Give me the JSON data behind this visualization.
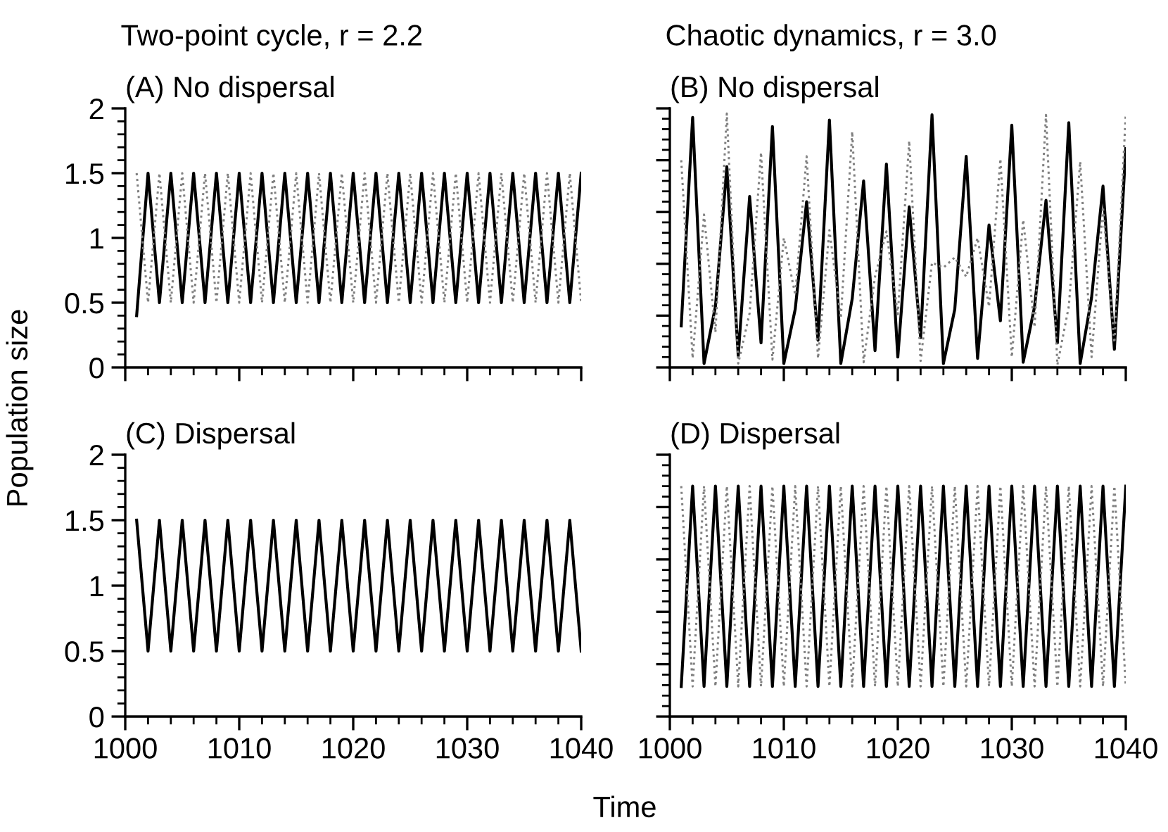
{
  "chart_data": [
    {
      "type": "line",
      "subtitle": "Two-point cycle, r = 2.2",
      "title": "(A) No dispersal",
      "ylabel": "Population size",
      "tick_labels": "y",
      "grid": false,
      "legend": false,
      "marker": "none",
      "x": [
        1001,
        1002,
        1003,
        1004,
        1005,
        1006,
        1007,
        1008,
        1009,
        1010,
        1011,
        1012,
        1013,
        1014,
        1015,
        1016,
        1017,
        1018,
        1019,
        1020,
        1021,
        1022,
        1023,
        1024,
        1025,
        1026,
        1027,
        1028,
        1029,
        1030,
        1031,
        1032,
        1033,
        1034,
        1035,
        1036,
        1037,
        1038,
        1039,
        1040
      ],
      "xlim": [
        1000,
        1040
      ],
      "xticks": [
        1000,
        {
          "value": 1002,
          "label": null
        },
        {
          "value": 1004,
          "label": null
        },
        {
          "value": 1006,
          "label": null
        },
        {
          "value": 1008,
          "label": null
        },
        1010,
        {
          "value": 1012,
          "label": null
        },
        {
          "value": 1014,
          "label": null
        },
        {
          "value": 1016,
          "label": null
        },
        {
          "value": 1018,
          "label": null
        },
        1020,
        {
          "value": 1022,
          "label": null
        },
        {
          "value": 1024,
          "label": null
        },
        {
          "value": 1026,
          "label": null
        },
        {
          "value": 1028,
          "label": null
        },
        1030,
        {
          "value": 1032,
          "label": null
        },
        {
          "value": 1034,
          "label": null
        },
        {
          "value": 1036,
          "label": null
        },
        {
          "value": 1038,
          "label": null
        },
        1040
      ],
      "ylim": [
        0,
        2
      ],
      "yticks": [
        0,
        {
          "value": 0.1,
          "label": null
        },
        {
          "value": 0.2,
          "label": null
        },
        {
          "value": 0.3,
          "label": null
        },
        {
          "value": 0.4,
          "label": null
        },
        0.5,
        {
          "value": 0.6,
          "label": null
        },
        {
          "value": 0.7,
          "label": null
        },
        {
          "value": 0.8,
          "label": null
        },
        {
          "value": 0.9,
          "label": null
        },
        1,
        {
          "value": 1.1,
          "label": null
        },
        {
          "value": 1.2,
          "label": null
        },
        {
          "value": 1.3,
          "label": null
        },
        {
          "value": 1.4,
          "label": null
        },
        1.5,
        {
          "value": 1.6,
          "label": null
        },
        {
          "value": 1.7,
          "label": null
        },
        {
          "value": 1.8,
          "label": null
        },
        {
          "value": 1.9,
          "label": null
        },
        2
      ],
      "series": [
        {
          "color": "#000000",
          "line_style": "solid",
          "values": [
            0.4,
            1.5,
            0.5,
            1.5,
            0.5,
            1.5,
            0.5,
            1.5,
            0.5,
            1.5,
            0.5,
            1.5,
            0.5,
            1.5,
            0.5,
            1.5,
            0.5,
            1.5,
            0.5,
            1.5,
            0.5,
            1.5,
            0.5,
            1.5,
            0.5,
            1.5,
            0.5,
            1.5,
            0.5,
            1.5,
            0.5,
            1.5,
            0.5,
            1.5,
            0.5,
            1.5,
            0.5,
            1.5,
            0.5,
            1.5
          ]
        },
        {
          "color": "#808080",
          "line_style": "dotted",
          "values": [
            1.5,
            0.5,
            1.5,
            0.5,
            1.5,
            0.5,
            1.5,
            0.5,
            1.5,
            0.5,
            1.5,
            0.5,
            1.5,
            0.5,
            1.5,
            0.5,
            1.5,
            0.5,
            1.5,
            0.5,
            1.5,
            0.5,
            1.5,
            0.5,
            1.5,
            0.5,
            1.5,
            0.5,
            1.5,
            0.5,
            1.5,
            0.5,
            1.5,
            0.5,
            1.5,
            0.5,
            1.5,
            0.5,
            1.5,
            0.5
          ]
        }
      ]
    },
    {
      "type": "line",
      "subtitle": "Chaotic dynamics, r = 3.0",
      "title": "(B) No dispersal",
      "tick_labels": false,
      "grid": false,
      "legend": false,
      "marker": "none",
      "x": [
        1001,
        1002,
        1003,
        1004,
        1005,
        1006,
        1007,
        1008,
        1009,
        1010,
        1011,
        1012,
        1013,
        1014,
        1015,
        1016,
        1017,
        1018,
        1019,
        1020,
        1021,
        1022,
        1023,
        1024,
        1025,
        1026,
        1027,
        1028,
        1029,
        1030,
        1031,
        1032,
        1033,
        1034,
        1035,
        1036,
        1037,
        1038,
        1039,
        1040
      ],
      "xlim": [
        1000,
        1040
      ],
      "xticks": [
        1000,
        {
          "value": 1002,
          "label": null
        },
        {
          "value": 1004,
          "label": null
        },
        {
          "value": 1006,
          "label": null
        },
        {
          "value": 1008,
          "label": null
        },
        1010,
        {
          "value": 1012,
          "label": null
        },
        {
          "value": 1014,
          "label": null
        },
        {
          "value": 1016,
          "label": null
        },
        {
          "value": 1018,
          "label": null
        },
        1020,
        {
          "value": 1022,
          "label": null
        },
        {
          "value": 1024,
          "label": null
        },
        {
          "value": 1026,
          "label": null
        },
        {
          "value": 1028,
          "label": null
        },
        1030,
        {
          "value": 1032,
          "label": null
        },
        {
          "value": 1034,
          "label": null
        },
        {
          "value": 1036,
          "label": null
        },
        {
          "value": 1038,
          "label": null
        },
        1040
      ],
      "ylim": [
        0,
        2
      ],
      "yticks": [
        0,
        {
          "value": 0.08,
          "label": null
        },
        {
          "value": 0.16,
          "label": null
        },
        {
          "value": 0.24,
          "label": null
        },
        {
          "value": 0.32,
          "label": null
        },
        0.4,
        {
          "value": 0.48,
          "label": null
        },
        {
          "value": 0.56,
          "label": null
        },
        {
          "value": 0.64,
          "label": null
        },
        {
          "value": 0.72,
          "label": null
        },
        0.8,
        {
          "value": 0.88,
          "label": null
        },
        {
          "value": 0.96,
          "label": null
        },
        {
          "value": 1.04,
          "label": null
        },
        {
          "value": 1.12,
          "label": null
        },
        1.2,
        {
          "value": 1.28,
          "label": null
        },
        {
          "value": 1.36,
          "label": null
        },
        {
          "value": 1.44,
          "label": null
        },
        {
          "value": 1.52,
          "label": null
        },
        1.6,
        {
          "value": 1.68,
          "label": null
        },
        {
          "value": 1.76,
          "label": null
        },
        {
          "value": 1.84,
          "label": null
        },
        {
          "value": 1.92,
          "label": null
        },
        2
      ],
      "series": [
        {
          "color": "#000000",
          "line_style": "solid",
          "values": [
            0.32,
            1.93,
            0.03,
            0.47,
            1.55,
            0.09,
            1.32,
            0.19,
            1.86,
            0.03,
            0.45,
            1.28,
            0.21,
            1.91,
            0.03,
            0.53,
            1.44,
            0.13,
            1.57,
            0.08,
            1.24,
            0.23,
            1.95,
            0.03,
            0.45,
            1.63,
            0.07,
            1.1,
            0.36,
            1.87,
            0.04,
            0.47,
            1.29,
            0.19,
            1.89,
            0.03,
            0.54,
            1.4,
            0.14,
            1.69
          ]
        },
        {
          "color": "#808080",
          "line_style": "dotted",
          "values": [
            1.6,
            0.07,
            1.18,
            0.27,
            1.96,
            0.03,
            0.42,
            1.66,
            0.06,
            1.0,
            0.56,
            1.63,
            0.07,
            1.06,
            0.38,
            1.82,
            0.04,
            0.7,
            1.05,
            0.41,
            1.75,
            0.05,
            0.81,
            0.77,
            0.85,
            0.7,
            1.0,
            0.47,
            1.61,
            0.08,
            1.14,
            0.31,
            1.95,
            0.02,
            0.47,
            1.59,
            0.08,
            1.24,
            0.19,
            1.96
          ]
        }
      ]
    },
    {
      "type": "line",
      "title": "(C) Dispersal",
      "xlabel": "Time",
      "grid": false,
      "legend": false,
      "marker": "none",
      "x": [
        1001,
        1002,
        1003,
        1004,
        1005,
        1006,
        1007,
        1008,
        1009,
        1010,
        1011,
        1012,
        1013,
        1014,
        1015,
        1016,
        1017,
        1018,
        1019,
        1020,
        1021,
        1022,
        1023,
        1024,
        1025,
        1026,
        1027,
        1028,
        1029,
        1030,
        1031,
        1032,
        1033,
        1034,
        1035,
        1036,
        1037,
        1038,
        1039,
        1040
      ],
      "xlim": [
        1000,
        1040
      ],
      "xticks": [
        1000,
        {
          "value": 1002,
          "label": null
        },
        {
          "value": 1004,
          "label": null
        },
        {
          "value": 1006,
          "label": null
        },
        {
          "value": 1008,
          "label": null
        },
        1010,
        {
          "value": 1012,
          "label": null
        },
        {
          "value": 1014,
          "label": null
        },
        {
          "value": 1016,
          "label": null
        },
        {
          "value": 1018,
          "label": null
        },
        1020,
        {
          "value": 1022,
          "label": null
        },
        {
          "value": 1024,
          "label": null
        },
        {
          "value": 1026,
          "label": null
        },
        {
          "value": 1028,
          "label": null
        },
        1030,
        {
          "value": 1032,
          "label": null
        },
        {
          "value": 1034,
          "label": null
        },
        {
          "value": 1036,
          "label": null
        },
        {
          "value": 1038,
          "label": null
        },
        1040
      ],
      "ylim": [
        0,
        2
      ],
      "yticks": [
        0,
        {
          "value": 0.1,
          "label": null
        },
        {
          "value": 0.2,
          "label": null
        },
        {
          "value": 0.3,
          "label": null
        },
        {
          "value": 0.4,
          "label": null
        },
        0.5,
        {
          "value": 0.6,
          "label": null
        },
        {
          "value": 0.7,
          "label": null
        },
        {
          "value": 0.8,
          "label": null
        },
        {
          "value": 0.9,
          "label": null
        },
        1,
        {
          "value": 1.1,
          "label": null
        },
        {
          "value": 1.2,
          "label": null
        },
        {
          "value": 1.3,
          "label": null
        },
        {
          "value": 1.4,
          "label": null
        },
        1.5,
        {
          "value": 1.6,
          "label": null
        },
        {
          "value": 1.7,
          "label": null
        },
        {
          "value": 1.8,
          "label": null
        },
        {
          "value": 1.9,
          "label": null
        },
        2
      ],
      "series": [
        {
          "color": "#000000",
          "line_style": "solid",
          "values": [
            1.5,
            0.5,
            1.5,
            0.5,
            1.5,
            0.5,
            1.5,
            0.5,
            1.5,
            0.5,
            1.5,
            0.5,
            1.5,
            0.5,
            1.5,
            0.5,
            1.5,
            0.5,
            1.5,
            0.5,
            1.5,
            0.5,
            1.5,
            0.5,
            1.5,
            0.5,
            1.5,
            0.5,
            1.5,
            0.5,
            1.5,
            0.5,
            1.5,
            0.5,
            1.5,
            0.5,
            1.5,
            0.5,
            1.5,
            0.5
          ]
        }
      ]
    },
    {
      "type": "line",
      "title": "(D) Dispersal",
      "tick_labels": "x",
      "grid": false,
      "legend": false,
      "marker": "none",
      "x": [
        1001,
        1002,
        1003,
        1004,
        1005,
        1006,
        1007,
        1008,
        1009,
        1010,
        1011,
        1012,
        1013,
        1014,
        1015,
        1016,
        1017,
        1018,
        1019,
        1020,
        1021,
        1022,
        1023,
        1024,
        1025,
        1026,
        1027,
        1028,
        1029,
        1030,
        1031,
        1032,
        1033,
        1034,
        1035,
        1036,
        1037,
        1038,
        1039,
        1040
      ],
      "xlim": [
        1000,
        1040
      ],
      "xticks": [
        1000,
        {
          "value": 1002,
          "label": null
        },
        {
          "value": 1004,
          "label": null
        },
        {
          "value": 1006,
          "label": null
        },
        {
          "value": 1008,
          "label": null
        },
        1010,
        {
          "value": 1012,
          "label": null
        },
        {
          "value": 1014,
          "label": null
        },
        {
          "value": 1016,
          "label": null
        },
        {
          "value": 1018,
          "label": null
        },
        1020,
        {
          "value": 1022,
          "label": null
        },
        {
          "value": 1024,
          "label": null
        },
        {
          "value": 1026,
          "label": null
        },
        {
          "value": 1028,
          "label": null
        },
        1030,
        {
          "value": 1032,
          "label": null
        },
        {
          "value": 1034,
          "label": null
        },
        {
          "value": 1036,
          "label": null
        },
        {
          "value": 1038,
          "label": null
        },
        1040
      ],
      "ylim": [
        0,
        2
      ],
      "yticks": [
        0,
        {
          "value": 0.08,
          "label": null
        },
        {
          "value": 0.16,
          "label": null
        },
        {
          "value": 0.24,
          "label": null
        },
        {
          "value": 0.32,
          "label": null
        },
        0.4,
        {
          "value": 0.48,
          "label": null
        },
        {
          "value": 0.56,
          "label": null
        },
        {
          "value": 0.64,
          "label": null
        },
        {
          "value": 0.72,
          "label": null
        },
        0.8,
        {
          "value": 0.88,
          "label": null
        },
        {
          "value": 0.96,
          "label": null
        },
        {
          "value": 1.04,
          "label": null
        },
        {
          "value": 1.12,
          "label": null
        },
        1.2,
        {
          "value": 1.28,
          "label": null
        },
        {
          "value": 1.36,
          "label": null
        },
        {
          "value": 1.44,
          "label": null
        },
        {
          "value": 1.52,
          "label": null
        },
        1.6,
        {
          "value": 1.68,
          "label": null
        },
        {
          "value": 1.76,
          "label": null
        },
        {
          "value": 1.84,
          "label": null
        },
        {
          "value": 1.92,
          "label": null
        },
        2
      ],
      "series": [
        {
          "color": "#000000",
          "line_style": "solid",
          "values": [
            0.23,
            1.76,
            0.23,
            1.76,
            0.23,
            1.76,
            0.23,
            1.76,
            0.23,
            1.76,
            0.23,
            1.76,
            0.23,
            1.76,
            0.23,
            1.76,
            0.23,
            1.76,
            0.23,
            1.76,
            0.23,
            1.76,
            0.23,
            1.76,
            0.23,
            1.76,
            0.23,
            1.76,
            0.23,
            1.76,
            0.23,
            1.76,
            0.23,
            1.76,
            0.23,
            1.76,
            0.23,
            1.76,
            0.23,
            1.76
          ]
        },
        {
          "color": "#808080",
          "line_style": "dotted",
          "values": [
            1.76,
            0.23,
            1.76,
            0.23,
            1.76,
            0.23,
            1.76,
            0.23,
            1.76,
            0.23,
            1.76,
            0.23,
            1.76,
            0.23,
            1.76,
            0.23,
            1.76,
            0.23,
            1.76,
            0.23,
            1.76,
            0.23,
            1.76,
            0.23,
            1.76,
            0.23,
            1.76,
            0.23,
            1.76,
            0.23,
            1.76,
            0.23,
            1.76,
            0.23,
            1.76,
            0.23,
            1.76,
            0.23,
            1.76,
            0.23
          ]
        }
      ]
    }
  ]
}
